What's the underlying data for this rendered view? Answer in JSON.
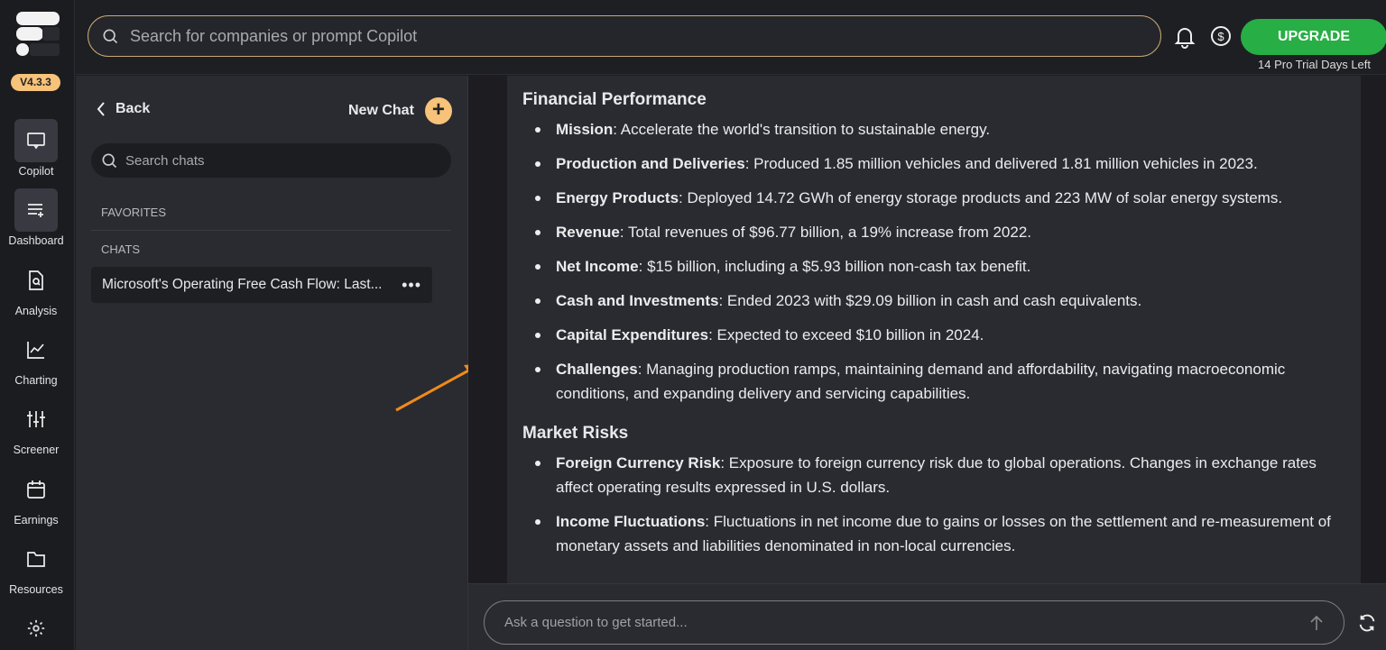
{
  "app": {
    "version": "V4.3.3",
    "accent": "#f7c27a",
    "upgrade_color": "#27ae45"
  },
  "nav": [
    {
      "label": "Copilot",
      "icon": "chat-icon",
      "active": true
    },
    {
      "label": "Dashboard",
      "icon": "list-add-icon",
      "active": true
    },
    {
      "label": "Analysis",
      "icon": "document-search-icon"
    },
    {
      "label": "Charting",
      "icon": "line-chart-icon"
    },
    {
      "label": "Screener",
      "icon": "sliders-icon"
    },
    {
      "label": "Earnings",
      "icon": "calendar-icon"
    },
    {
      "label": "Resources",
      "icon": "folder-icon"
    }
  ],
  "header": {
    "search_placeholder": "Search for companies or prompt Copilot",
    "upgrade": "UPGRADE",
    "trial": "14 Pro Trial Days Left"
  },
  "panel": {
    "back": "Back",
    "new_chat": "New Chat",
    "search_placeholder": "Search chats",
    "favorites": "FAVORITES",
    "chats": "CHATS",
    "chat_items": [
      "Microsoft's Operating Free Cash Flow: Last..."
    ]
  },
  "content": {
    "sections": [
      {
        "title": "Financial Performance",
        "items": [
          {
            "label": "Mission",
            "text": ": Accelerate the world's transition to sustainable energy."
          },
          {
            "label": "Production and Deliveries",
            "text": ": Produced 1.85 million vehicles and delivered 1.81 million vehicles in 2023."
          },
          {
            "label": "Energy Products",
            "text": ": Deployed 14.72 GWh of energy storage products and 223 MW of solar energy systems."
          },
          {
            "label": "Revenue",
            "text": ": Total revenues of $96.77 billion, a 19% increase from 2022."
          },
          {
            "label": "Net Income",
            "text": ": $15 billion, including a $5.93 billion non-cash tax benefit."
          },
          {
            "label": "Cash and Investments",
            "text": ": Ended 2023 with $29.09 billion in cash and cash equivalents."
          },
          {
            "label": "Capital Expenditures",
            "text": ": Expected to exceed $10 billion in 2024."
          },
          {
            "label": "Challenges",
            "text": ": Managing production ramps, maintaining demand and affordability, navigating macroeconomic conditions, and expanding delivery and servicing capabilities."
          }
        ]
      },
      {
        "title": "Market Risks",
        "items": [
          {
            "label": "Foreign Currency Risk",
            "text": ": Exposure to foreign currency risk due to global operations. Changes in exchange rates affect operating results expressed in U.S. dollars."
          },
          {
            "label": "Income Fluctuations",
            "text": ": Fluctuations in net income due to gains or losses on the settlement and re-measurement of monetary assets and liabilities denominated in non-local currencies."
          }
        ]
      }
    ]
  },
  "input": {
    "placeholder": "Ask a question to get started..."
  }
}
